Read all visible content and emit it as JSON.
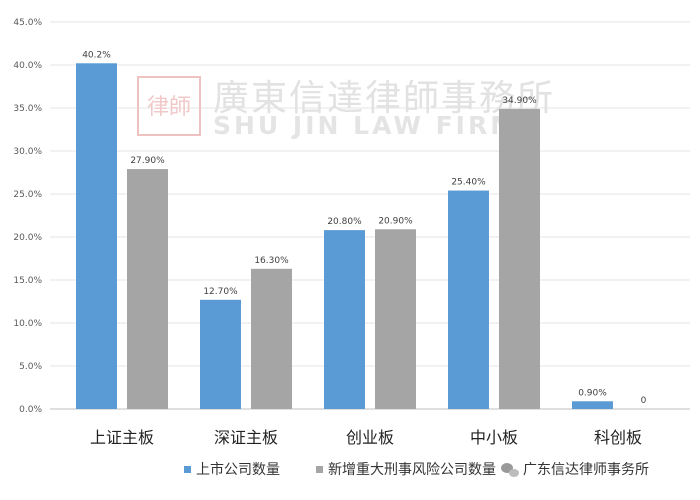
{
  "chart_data": {
    "type": "bar",
    "categories": [
      "上证主板",
      "深证主板",
      "创业板",
      "中小板",
      "科创板"
    ],
    "series": [
      {
        "name": "上市公司数量",
        "color": "#5b9bd5",
        "values": [
          40.2,
          12.7,
          20.8,
          25.4,
          0.9
        ],
        "labels": [
          "40.2%",
          "12.70%",
          "20.80%",
          "25.40%",
          "0.90%"
        ]
      },
      {
        "name": "新增重大刑事风险公司数量",
        "color": "#a5a5a5",
        "values": [
          27.9,
          16.3,
          20.9,
          34.9,
          0
        ],
        "labels": [
          "27.90%",
          "16.30%",
          "20.90%",
          "34.90%",
          "0"
        ]
      }
    ],
    "yticks": [
      "0.0%",
      "5.0%",
      "10.0%",
      "15.0%",
      "20.0%",
      "25.0%",
      "30.0%",
      "35.0%",
      "40.0%",
      "45.0%"
    ],
    "ylim": [
      0,
      45
    ],
    "grid": true,
    "legend": "bottom",
    "title": "",
    "xlabel": "",
    "ylabel": ""
  },
  "watermark": {
    "seal": "律師",
    "chinese": "廣東信達律師事務所",
    "english": "SHU JIN LAW FIRM"
  },
  "credit": {
    "icon": "wechat-icon",
    "text": "广东信达律师事务所"
  }
}
